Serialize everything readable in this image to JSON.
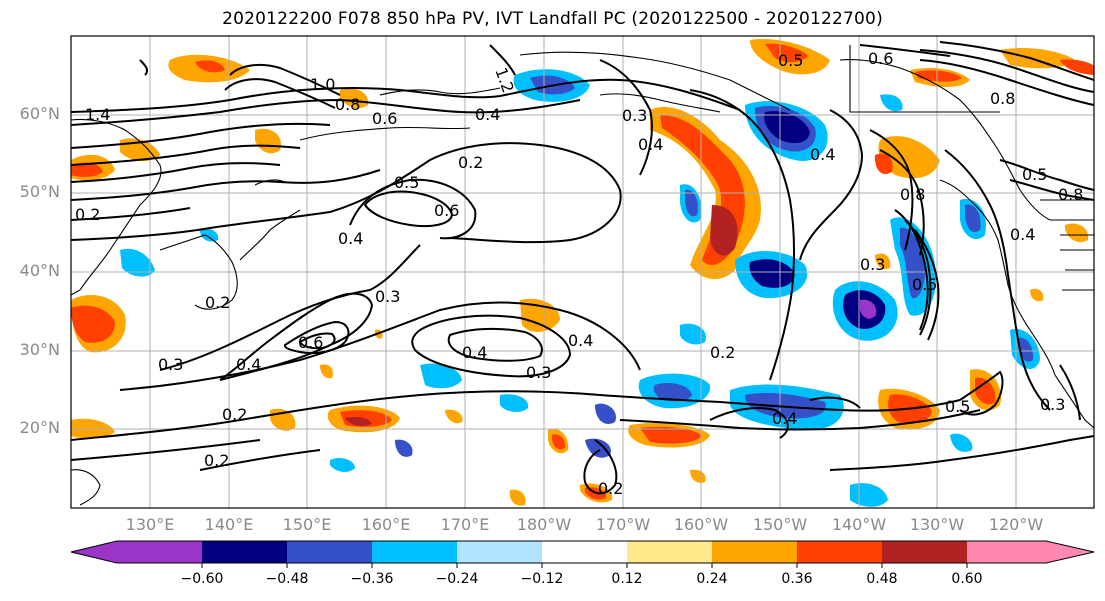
{
  "title": "2020122200 F078 850 hPa PV, IVT Landfall PC (2020122500 - 2020122700)",
  "lat_labels": [
    "60°N",
    "50°N",
    "40°N",
    "30°N",
    "20°N"
  ],
  "lon_labels": [
    "130°E",
    "140°E",
    "150°E",
    "160°E",
    "170°E",
    "180°W",
    "170°W",
    "160°W",
    "150°W",
    "140°W",
    "130°W",
    "120°W"
  ],
  "colorbar": {
    "ticks": [
      "−0.60",
      "−0.48",
      "−0.36",
      "−0.24",
      "−0.12",
      "0.12",
      "0.24",
      "0.36",
      "0.48",
      "0.60"
    ],
    "colors": [
      "#9a35c8",
      "#000080",
      "#3550c8",
      "#00bfff",
      "#b0e3ff",
      "#ffffff",
      "#ffe98a",
      "#ffa500",
      "#ff4000",
      "#b22222",
      "#ff88b0"
    ]
  },
  "contour_labels": [
    "1.4",
    "1.0",
    "0.8",
    "1.2",
    "0.6",
    "0.4",
    "0.3",
    "0.2",
    "0.5",
    "0.6",
    "0.4",
    "0.2",
    "0.2",
    "0.3",
    "0.3",
    "0.4",
    "0.6",
    "0.4",
    "0.2",
    "0.2",
    "0.4",
    "0.4",
    "0.3",
    "0.2",
    "0.2",
    "0.4",
    "0.5",
    "0.3",
    "0.5",
    "0.8",
    "0.4",
    "0.5",
    "0.3",
    "0.5",
    "0.6",
    "0.4",
    "0.8",
    "0.8"
  ]
}
